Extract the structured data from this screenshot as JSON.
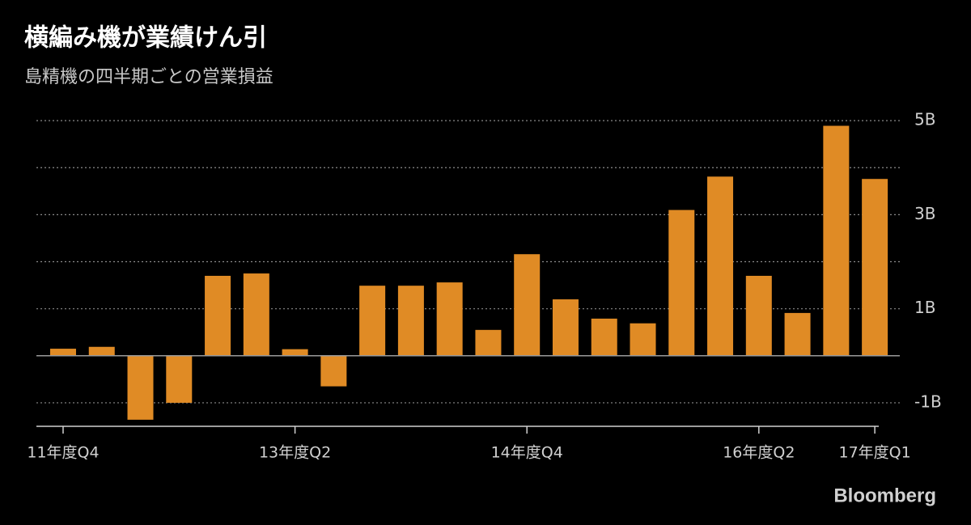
{
  "chart_data": {
    "type": "bar",
    "title": "横編み機が業績けん引",
    "subtitle": "島精機の四半期ごとの営業損益",
    "source": "Bloomberg",
    "categories": [
      "11年度Q4",
      null,
      null,
      null,
      null,
      null,
      "13年度Q2",
      null,
      null,
      null,
      null,
      null,
      "14年度Q4",
      null,
      null,
      null,
      null,
      null,
      "16年度Q2",
      null,
      null,
      "17年度Q1"
    ],
    "values": [
      0.15,
      0.19,
      -1.36,
      -1.0,
      1.7,
      1.75,
      0.14,
      -0.65,
      1.49,
      1.49,
      1.56,
      0.55,
      2.16,
      1.2,
      0.79,
      0.69,
      3.1,
      3.81,
      1.7,
      0.91,
      4.89,
      3.76
    ],
    "color": "#e08b25",
    "ylim": [
      -1.5,
      5.2
    ],
    "yticks": [
      {
        "value": 5,
        "label": "5B"
      },
      {
        "value": 3,
        "label": "3B"
      },
      {
        "value": 1,
        "label": "1B"
      },
      {
        "value": -1,
        "label": "-1B"
      }
    ],
    "minor_yticks": [
      4,
      2
    ],
    "grid": true
  }
}
